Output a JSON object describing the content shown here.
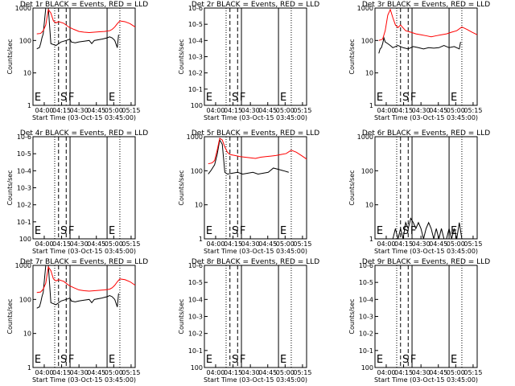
{
  "figure": {
    "ylabel": "Counts/sec",
    "xlabel": "Start Time (03-Oct-15 03:45:00)",
    "x_ticks": [
      "04:00",
      "04:15",
      "04:30",
      "04:45",
      "05:00",
      "05:15"
    ],
    "line_colors": {
      "events": "#000000",
      "lld": "#ff0000",
      "axes": "#000000"
    }
  },
  "chart_data": [
    {
      "type": "line",
      "title": "Det 1r BLACK = Events, RED = LLD",
      "y_log": true,
      "ylim": [
        1,
        1000
      ],
      "y_ticks": [
        "1",
        "10",
        "100",
        "1000"
      ],
      "markers": [
        "E",
        "S",
        "F",
        "E"
      ],
      "series": [
        {
          "name": "Events",
          "color": "#000000",
          "x": [
            3,
            4,
            5,
            6,
            7,
            8,
            10,
            12,
            14,
            18,
            22,
            26,
            29,
            30,
            33,
            36,
            40,
            44,
            46,
            48,
            54,
            56,
            58,
            60,
            62,
            64,
            66,
            67
          ],
          "y": [
            55,
            58,
            60,
            80,
            120,
            160,
            1000,
            1000,
            80,
            70,
            90,
            100,
            110,
            90,
            85,
            90,
            95,
            100,
            80,
            100,
            110,
            115,
            120,
            130,
            120,
            100,
            60,
            150
          ]
        },
        {
          "name": "LLD",
          "color": "#ff0000",
          "x": [
            3,
            6,
            8,
            10,
            12,
            14,
            16,
            18,
            20,
            24,
            28,
            32,
            36,
            40,
            44,
            48,
            52,
            56,
            60,
            62,
            64,
            66,
            68,
            72,
            76,
            80
          ],
          "y": [
            160,
            165,
            200,
            300,
            900,
            700,
            400,
            350,
            380,
            340,
            260,
            220,
            190,
            180,
            175,
            180,
            185,
            190,
            200,
            220,
            260,
            330,
            400,
            380,
            330,
            260
          ]
        }
      ]
    },
    {
      "type": "line",
      "title": "Det 2r BLACK = Events, RED = LLD",
      "y_log": true,
      "y_ticks": [
        "10^0",
        "10^-1",
        "10^-2",
        "10^-3",
        "10^-4",
        "10^-5",
        "10^-6"
      ],
      "markers": [
        "E",
        "S",
        "F",
        "E"
      ],
      "series": []
    },
    {
      "type": "line",
      "title": "Det 3r BLACK = Events, RED = LLD",
      "y_log": true,
      "ylim": [
        1,
        1000
      ],
      "y_ticks": [
        "1",
        "10",
        "100",
        "1000"
      ],
      "markers": [
        "E",
        "S",
        "F",
        "E"
      ],
      "series": [
        {
          "name": "Events",
          "color": "#000000",
          "x": [
            3,
            4,
            5,
            6,
            7,
            8,
            10,
            12,
            14,
            18,
            22,
            26,
            30,
            34,
            38,
            42,
            46,
            50,
            54,
            58,
            62,
            66,
            67
          ],
          "y": [
            40,
            55,
            60,
            80,
            120,
            90,
            80,
            70,
            60,
            70,
            60,
            55,
            65,
            60,
            55,
            60,
            58,
            60,
            70,
            60,
            65,
            55,
            90
          ]
        },
        {
          "name": "LLD",
          "color": "#ff0000",
          "x": [
            3,
            6,
            8,
            10,
            12,
            14,
            16,
            18,
            20,
            24,
            28,
            32,
            36,
            40,
            44,
            48,
            52,
            56,
            60,
            64,
            68,
            72,
            76,
            80
          ],
          "y": [
            100,
            110,
            200,
            600,
            900,
            500,
            300,
            250,
            300,
            200,
            180,
            160,
            150,
            140,
            130,
            140,
            150,
            160,
            180,
            200,
            260,
            220,
            180,
            150
          ]
        }
      ]
    },
    {
      "type": "line",
      "title": "Det 4r BLACK = Events, RED = LLD",
      "y_log": true,
      "y_ticks": [
        "10^0",
        "10^-1",
        "10^-2",
        "10^-3",
        "10^-4",
        "10^-5",
        "10^-6"
      ],
      "markers": [
        "E",
        "S",
        "F",
        "E"
      ],
      "series": []
    },
    {
      "type": "line",
      "title": "Det 5r BLACK = Events, RED = LLD",
      "y_log": true,
      "ylim": [
        1,
        1000
      ],
      "y_ticks": [
        "1",
        "10",
        "100",
        "1000"
      ],
      "markers": [
        "E",
        "S",
        "F",
        "E"
      ],
      "series": [
        {
          "name": "Events",
          "color": "#000000",
          "x": [
            3,
            5,
            8,
            10,
            12,
            14,
            16,
            18,
            22,
            26,
            30,
            34,
            38,
            42,
            46,
            50,
            54,
            58,
            62,
            66
          ],
          "y": [
            80,
            100,
            150,
            300,
            800,
            600,
            90,
            80,
            85,
            90,
            80,
            85,
            90,
            80,
            85,
            90,
            120,
            110,
            100,
            90
          ]
        },
        {
          "name": "LLD",
          "color": "#ff0000",
          "x": [
            3,
            6,
            8,
            10,
            12,
            14,
            16,
            18,
            20,
            24,
            28,
            32,
            36,
            40,
            44,
            48,
            52,
            56,
            60,
            64,
            68,
            72,
            76,
            80
          ],
          "y": [
            160,
            170,
            200,
            400,
            900,
            800,
            500,
            350,
            300,
            280,
            260,
            250,
            240,
            230,
            250,
            260,
            270,
            280,
            300,
            320,
            400,
            350,
            280,
            220
          ]
        }
      ]
    },
    {
      "type": "line",
      "title": "Det 6r BLACK = Events, RED = LLD",
      "y_log": true,
      "ylim": [
        1,
        1000
      ],
      "y_ticks": [
        "1",
        "10",
        "100",
        "1000"
      ],
      "markers": [
        "E",
        "S",
        "F",
        "E"
      ],
      "series": [
        {
          "name": "Events",
          "color": "#000000",
          "x": [
            14,
            16,
            18,
            20,
            22,
            24,
            26,
            28,
            30,
            32,
            34,
            36,
            38,
            40,
            42,
            44,
            46,
            48,
            50,
            52,
            54,
            56,
            58,
            60,
            62,
            64,
            66,
            68
          ],
          "y": [
            1,
            2,
            1,
            2,
            1,
            3,
            2,
            4,
            3,
            2,
            3,
            2,
            1,
            2,
            3,
            2,
            1,
            2,
            1,
            2,
            1,
            1,
            2,
            1,
            2,
            1,
            3,
            1
          ]
        }
      ]
    },
    {
      "type": "line",
      "title": "Det 7r BLACK = Events, RED = LLD",
      "y_log": true,
      "ylim": [
        1,
        1000
      ],
      "y_ticks": [
        "1",
        "10",
        "100",
        "1000"
      ],
      "markers": [
        "E",
        "S",
        "F",
        "E"
      ],
      "series": [
        {
          "name": "Events",
          "color": "#000000",
          "x": [
            3,
            4,
            5,
            6,
            7,
            8,
            10,
            12,
            14,
            18,
            22,
            26,
            29,
            30,
            33,
            36,
            40,
            44,
            46,
            48,
            54,
            56,
            58,
            60,
            62,
            64,
            66,
            67
          ],
          "y": [
            55,
            58,
            60,
            80,
            120,
            160,
            1000,
            1000,
            80,
            70,
            90,
            100,
            110,
            90,
            85,
            90,
            95,
            100,
            80,
            100,
            110,
            115,
            120,
            130,
            120,
            100,
            60,
            150
          ]
        },
        {
          "name": "LLD",
          "color": "#ff0000",
          "x": [
            3,
            6,
            8,
            10,
            12,
            14,
            16,
            18,
            20,
            24,
            28,
            32,
            36,
            40,
            44,
            48,
            52,
            56,
            60,
            62,
            64,
            66,
            68,
            72,
            76,
            80
          ],
          "y": [
            160,
            165,
            200,
            300,
            900,
            700,
            400,
            350,
            380,
            340,
            260,
            220,
            190,
            180,
            175,
            180,
            185,
            190,
            200,
            220,
            260,
            330,
            400,
            380,
            330,
            260
          ]
        }
      ]
    },
    {
      "type": "line",
      "title": "Det 8r BLACK = Events, RED = LLD",
      "y_log": true,
      "y_ticks": [
        "10^0",
        "10^-1",
        "10^-2",
        "10^-3",
        "10^-4",
        "10^-5",
        "10^-6"
      ],
      "markers": [
        "E",
        "S",
        "F",
        "E"
      ],
      "series": []
    },
    {
      "type": "line",
      "title": "Det 9r BLACK = Events, RED = LLD",
      "y_log": true,
      "y_ticks": [
        "10^0",
        "10^-1",
        "10^-2",
        "10^-3",
        "10^-4",
        "10^-5",
        "10^-6"
      ],
      "markers": [
        "E",
        "S",
        "F",
        "E"
      ],
      "series": []
    }
  ]
}
